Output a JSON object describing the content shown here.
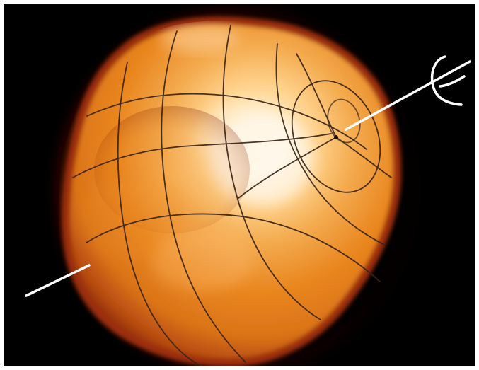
{
  "image": {
    "subject": "star-surface-with-rotation-axis",
    "background_color": "#000000",
    "frame_color": "#ffffff",
    "colors": {
      "limb": "#6e1208",
      "edge": "#b54a10",
      "body": "#e9861f",
      "highlight": "#fff7e8",
      "grid": "#3a2416",
      "axis": "#ffffff"
    },
    "axis_symbol": "rotation-axis-symbol",
    "axis_symbol_glyph": "ℂ"
  }
}
